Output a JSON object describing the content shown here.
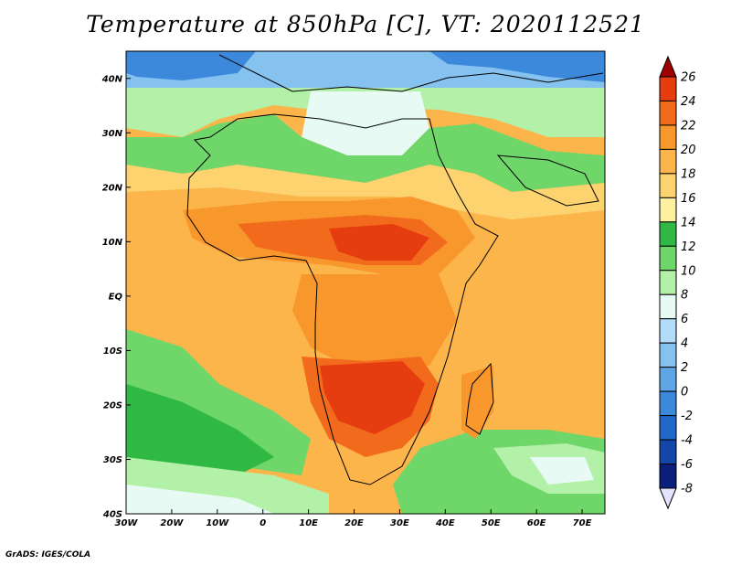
{
  "title": "Temperature at 850hPa [C], VT: 2020112521",
  "credit": "GrADS: IGES/COLA",
  "map": {
    "projection": "latlon",
    "lon_range": [
      -30,
      75
    ],
    "lat_range": [
      -40,
      45
    ],
    "lat_ticks": [
      {
        "value": 40,
        "label": "40N"
      },
      {
        "value": 30,
        "label": "30N"
      },
      {
        "value": 20,
        "label": "20N"
      },
      {
        "value": 10,
        "label": "10N"
      },
      {
        "value": 0,
        "label": "EQ"
      },
      {
        "value": -10,
        "label": "10S"
      },
      {
        "value": -20,
        "label": "20S"
      },
      {
        "value": -30,
        "label": "30S"
      },
      {
        "value": -40,
        "label": "40S"
      }
    ],
    "lon_ticks": [
      {
        "value": -30,
        "label": "30W"
      },
      {
        "value": -20,
        "label": "20W"
      },
      {
        "value": -10,
        "label": "10W"
      },
      {
        "value": 0,
        "label": "0"
      },
      {
        "value": 10,
        "label": "10E"
      },
      {
        "value": 20,
        "label": "20E"
      },
      {
        "value": 30,
        "label": "30E"
      },
      {
        "value": 40,
        "label": "40E"
      },
      {
        "value": 50,
        "label": "50E"
      },
      {
        "value": 60,
        "label": "60E"
      },
      {
        "value": 70,
        "label": "70E"
      }
    ]
  },
  "colorbar": {
    "labels": [
      "26",
      "24",
      "22",
      "20",
      "18",
      "16",
      "14",
      "12",
      "10",
      "8",
      "6",
      "4",
      "2",
      "0",
      "-2",
      "-4",
      "-6",
      "-8"
    ],
    "colors": [
      "#a00000",
      "#e53d10",
      "#f26b1d",
      "#f8972c",
      "#fbb54a",
      "#fcd36e",
      "#fdf0a0",
      "#2fb843",
      "#6fd66a",
      "#b3f0a8",
      "#e7fbf4",
      "#b2dcf7",
      "#86c2f0",
      "#5ea6e6",
      "#3c89dc",
      "#2368c8",
      "#1346a8",
      "#0a1e7a",
      "#e4e4ff"
    ]
  }
}
